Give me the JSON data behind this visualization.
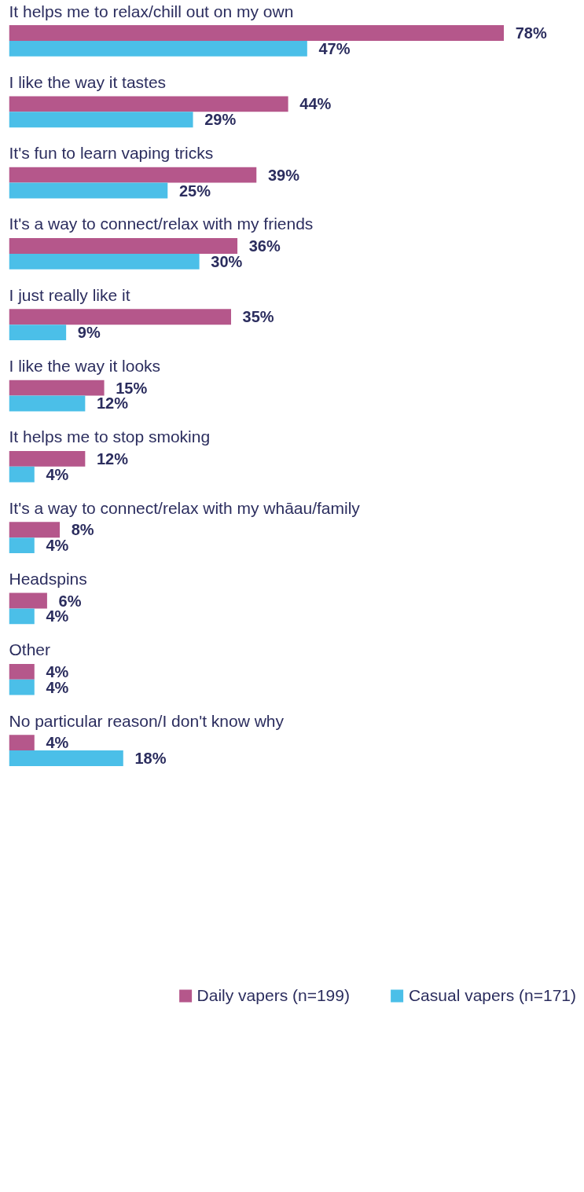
{
  "chart_data": {
    "type": "bar",
    "orientation": "horizontal",
    "relative": false,
    "categories": [
      "It helps me to relax/chill out on my own",
      "I like the way it tastes",
      "It's fun to learn vaping tricks",
      "It's a way to connect/relax with my friends",
      "I just really like it",
      "I like the way it looks",
      "It helps me to stop smoking",
      "It's a way to connect/relax with my whāau/family",
      "Headspins",
      "Other",
      "No particular reason/I don't know why"
    ],
    "series": [
      {
        "name": "Daily vapers (n=199)",
        "color": "#b5578b",
        "values": [
          78,
          44,
          39,
          36,
          35,
          15,
          12,
          8,
          6,
          4,
          4
        ],
        "value_labels": [
          "78%",
          "44%",
          "39%",
          "36%",
          "35%",
          "15%",
          "12%",
          "8%",
          "6%",
          "4%",
          "4%"
        ]
      },
      {
        "name": "Casual vapers (n=171)",
        "color": "#4bbfe8",
        "values": [
          47,
          29,
          25,
          30,
          9,
          12,
          4,
          4,
          4,
          4,
          18
        ],
        "value_labels": [
          "47%",
          "29%",
          "25%",
          "30%",
          "9%",
          "12%",
          "4%",
          "4%",
          "4%",
          "4%",
          "18%"
        ]
      }
    ],
    "legend": "bottom",
    "grid": false
  }
}
